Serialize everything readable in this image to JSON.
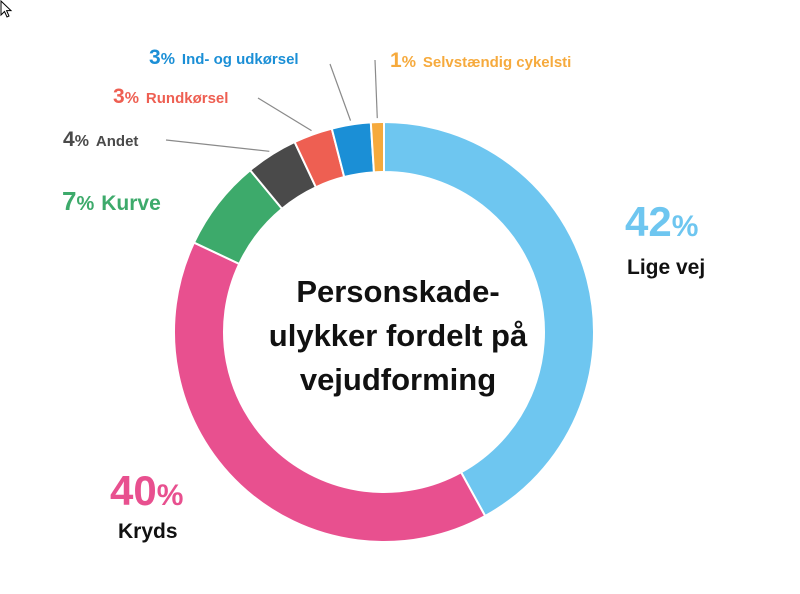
{
  "chart_data": {
    "type": "pie",
    "donut": true,
    "title_lines": [
      "Personskade-",
      "ulykker fordelt på",
      "vejudforming"
    ],
    "legend": "labels on slices",
    "slices": [
      {
        "label": "Lige vej",
        "value": 42,
        "value_text": "42",
        "color": "#6ec6f0"
      },
      {
        "label": "Kryds",
        "value": 40,
        "value_text": "40",
        "color": "#e8508f"
      },
      {
        "label": "Kurve",
        "value": 7,
        "value_text": "7",
        "color": "#3daa6b"
      },
      {
        "label": "Andet",
        "value": 4,
        "value_text": "4",
        "color": "#4a4a4a"
      },
      {
        "label": "Rundkørsel",
        "value": 3,
        "value_text": "3",
        "color": "#ee5f52"
      },
      {
        "label": "Ind- og udkørsel",
        "value": 3,
        "value_text": "3",
        "color": "#1b8fd6"
      },
      {
        "label": "Selvstændig cykelsti",
        "value": 1,
        "value_text": "1",
        "color": "#f6aa3d"
      }
    ],
    "percent_sign": "%"
  }
}
